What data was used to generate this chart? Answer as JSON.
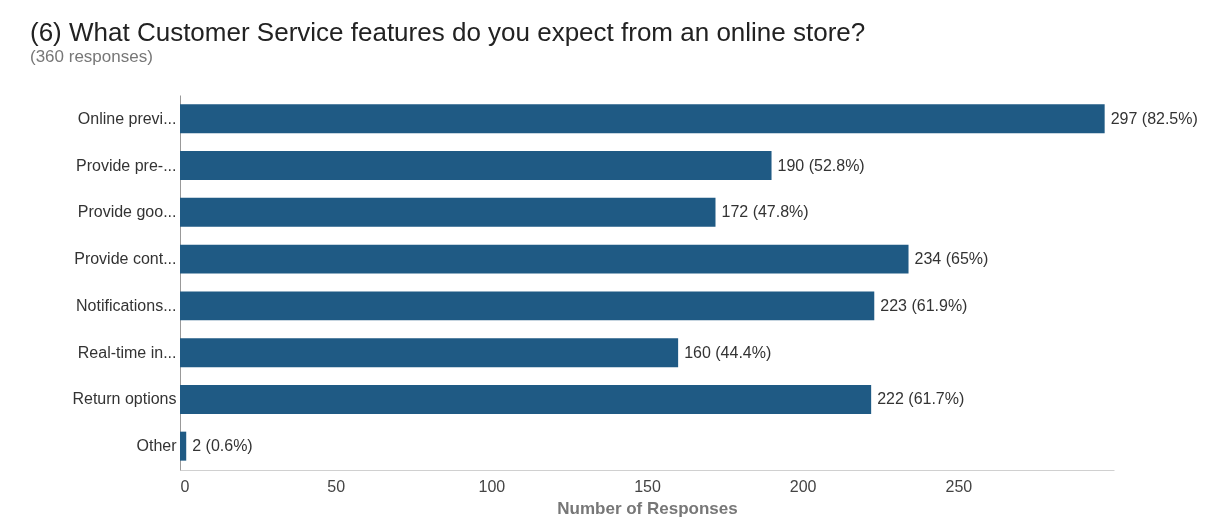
{
  "chart_data": {
    "type": "bar",
    "orientation": "horizontal",
    "title": "(6) What Customer Service features do you expect from an online store?",
    "subtitle": "(360 responses)",
    "xlabel": "Number of Responses",
    "categories": [
      "Online previ...",
      "Provide pre-...",
      "Provide goo...",
      "Provide cont...",
      "Notifications...",
      "Real-time in...",
      "Return options",
      "Other"
    ],
    "values": [
      297,
      190,
      172,
      234,
      223,
      160,
      222,
      2
    ],
    "value_labels": [
      "297 (82.5%)",
      "190 (52.8%)",
      "172 (47.8%)",
      "234 (65%)",
      "223 (61.9%)",
      "160 (44.4%)",
      "222 (61.7%)",
      "2 (0.6%)"
    ],
    "color": "#1f5a84",
    "xlim": [
      0,
      300
    ],
    "xticks": [
      0,
      50,
      100,
      150,
      200,
      250
    ],
    "grid": false
  }
}
